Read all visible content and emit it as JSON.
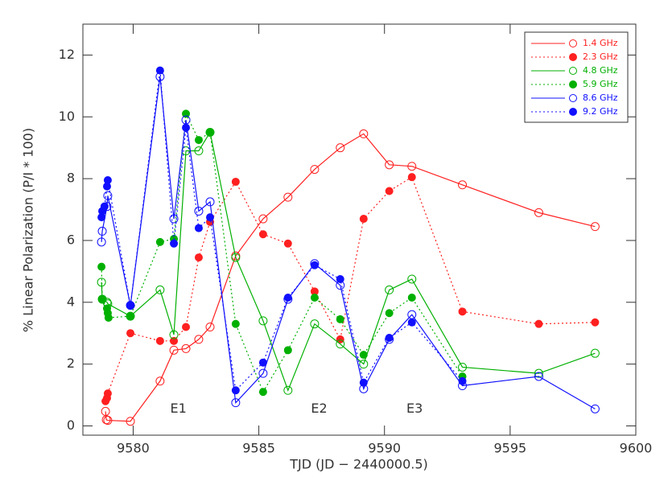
{
  "chart_data": {
    "type": "line",
    "xlabel": "TJD (JD − 2440000.5)",
    "ylabel": "% Linear Polarization (P/I * 100)",
    "xlim": [
      9578,
      9600
    ],
    "xticks": [
      9580,
      9585,
      9590,
      9595,
      9600
    ],
    "ylim": [
      -0.3,
      13
    ],
    "yticks": [
      0,
      2,
      4,
      6,
      8,
      10,
      12
    ],
    "legend": "upper right",
    "annotations": [
      {
        "text": "E1",
        "x": 9581.8,
        "y": 0.55
      },
      {
        "text": "E2",
        "x": 9587.4,
        "y": 0.55
      },
      {
        "text": "E3",
        "x": 9591.2,
        "y": 0.55
      }
    ],
    "series": [
      {
        "name": "1.4 GHz",
        "color": "#ff2020",
        "line": "solid",
        "marker": "open",
        "x": [
          9578.9,
          9578.93,
          9578.99,
          9579.89,
          9581.07,
          9581.62,
          9582.1,
          9582.61,
          9583.06,
          9584.08,
          9585.17,
          9586.16,
          9587.22,
          9588.24,
          9589.17,
          9590.19,
          9591.09,
          9593.1,
          9596.14,
          9598.38
        ],
        "values": [
          0.47,
          0.2,
          0.18,
          0.15,
          1.45,
          2.45,
          2.5,
          2.8,
          3.2,
          5.5,
          6.7,
          7.4,
          8.3,
          9.0,
          9.45,
          8.45,
          8.4,
          7.8,
          6.9,
          6.45
        ]
      },
      {
        "name": "2.3 GHz",
        "color": "#ff2020",
        "line": "dotted",
        "marker": "filled",
        "x": [
          9578.9,
          9578.96,
          9578.99,
          9579.89,
          9581.07,
          9581.62,
          9582.1,
          9582.61,
          9583.06,
          9584.08,
          9585.17,
          9586.16,
          9587.22,
          9588.24,
          9589.17,
          9590.19,
          9591.09,
          9593.1,
          9596.14,
          9598.38
        ],
        "values": [
          0.8,
          0.9,
          1.05,
          3.0,
          2.75,
          2.75,
          3.2,
          5.45,
          6.6,
          7.9,
          6.2,
          5.9,
          4.35,
          2.8,
          6.7,
          7.6,
          8.05,
          3.7,
          3.3,
          3.35
        ]
      },
      {
        "name": "4.8 GHz",
        "color": "#00b000",
        "line": "solid",
        "marker": "open",
        "x": [
          9578.74,
          9578.77,
          9578.96,
          9578.99,
          9579.89,
          9581.07,
          9581.62,
          9582.1,
          9582.61,
          9583.06,
          9584.08,
          9585.17,
          9586.16,
          9587.22,
          9588.24,
          9589.17,
          9590.19,
          9591.09,
          9593.1,
          9596.14,
          9598.38
        ],
        "values": [
          4.65,
          4.1,
          4.0,
          3.95,
          3.55,
          4.4,
          2.95,
          8.9,
          8.9,
          9.5,
          5.45,
          3.4,
          1.15,
          3.3,
          2.65,
          2.0,
          4.4,
          4.75,
          1.9,
          1.7,
          2.35
        ]
      },
      {
        "name": "5.9 GHz",
        "color": "#00b000",
        "line": "dotted",
        "marker": "filled",
        "x": [
          9578.74,
          9578.77,
          9578.96,
          9578.99,
          9579.02,
          9579.89,
          9581.07,
          9581.62,
          9582.1,
          9582.61,
          9583.06,
          9584.08,
          9585.17,
          9586.16,
          9587.22,
          9588.24,
          9589.17,
          9590.19,
          9591.09,
          9593.1
        ],
        "values": [
          5.15,
          4.1,
          3.8,
          3.65,
          3.5,
          3.55,
          5.95,
          6.05,
          10.1,
          9.25,
          9.5,
          3.3,
          1.1,
          2.45,
          4.15,
          3.45,
          2.3,
          3.65,
          4.15,
          1.6
        ]
      },
      {
        "name": "8.6 GHz",
        "color": "#1010ff",
        "line": "solid",
        "marker": "open",
        "x": [
          9578.74,
          9578.77,
          9578.96,
          9578.99,
          9579.89,
          9581.07,
          9581.62,
          9582.1,
          9582.61,
          9583.06,
          9584.08,
          9585.17,
          9586.16,
          9587.22,
          9588.24,
          9589.17,
          9590.19,
          9591.09,
          9593.1,
          9596.14,
          9598.38
        ],
        "values": [
          5.95,
          6.3,
          7.1,
          7.45,
          3.9,
          11.3,
          6.7,
          9.9,
          6.95,
          7.25,
          0.75,
          1.7,
          4.1,
          5.25,
          4.55,
          1.2,
          2.8,
          3.6,
          1.3,
          1.6,
          0.55
        ]
      },
      {
        "name": "9.2 GHz",
        "color": "#1010ff",
        "line": "dotted",
        "marker": "filled",
        "x": [
          9578.74,
          9578.77,
          9578.86,
          9578.96,
          9578.99,
          9579.89,
          9581.07,
          9581.62,
          9582.1,
          9582.61,
          9583.06,
          9584.08,
          9585.17,
          9586.16,
          9587.22,
          9588.24,
          9589.17,
          9590.19,
          9591.09,
          9593.1
        ],
        "values": [
          6.75,
          6.95,
          7.1,
          7.75,
          7.95,
          3.9,
          11.5,
          5.9,
          9.65,
          6.4,
          6.75,
          1.15,
          2.05,
          4.15,
          5.2,
          4.75,
          1.4,
          2.85,
          3.35,
          1.45
        ]
      }
    ]
  }
}
